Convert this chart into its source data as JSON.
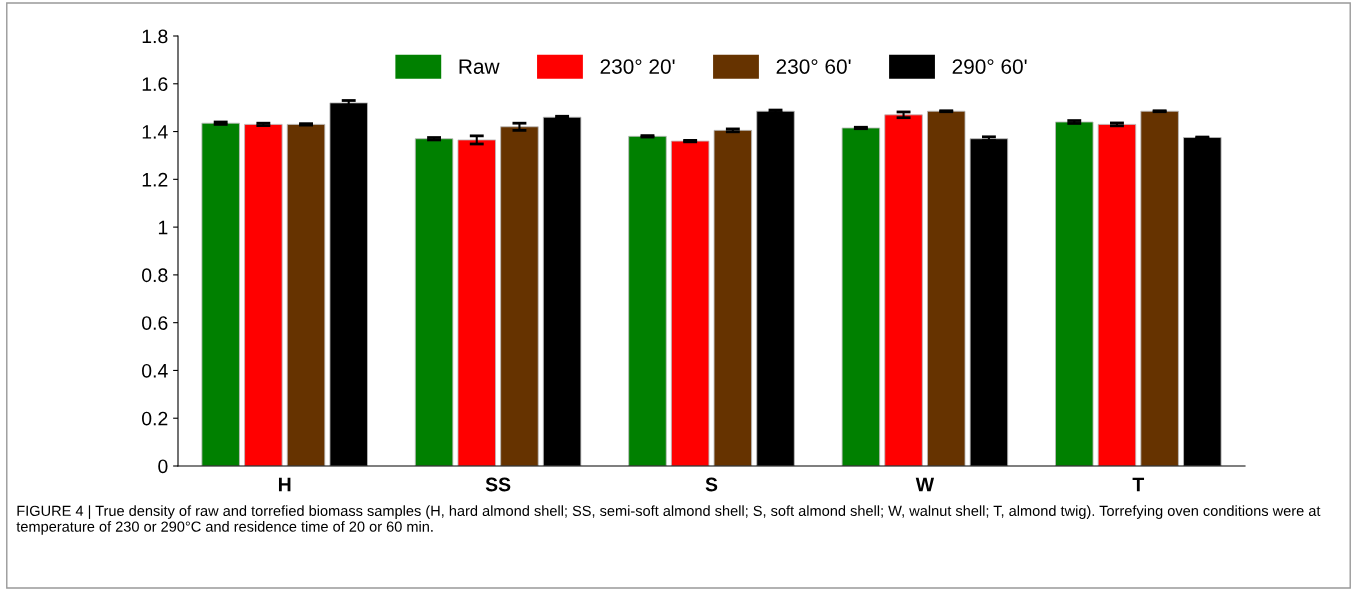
{
  "chart_data": {
    "type": "bar",
    "categories": [
      "H",
      "SS",
      "S",
      "W",
      "T"
    ],
    "series": [
      {
        "name": "Raw",
        "color": "#008000",
        "values": [
          1.435,
          1.37,
          1.38,
          1.415,
          1.44
        ],
        "errors": [
          0.005,
          0.005,
          0.003,
          0.003,
          0.006
        ]
      },
      {
        "name": "230° 20'",
        "color": "#ff0000",
        "values": [
          1.43,
          1.365,
          1.36,
          1.47,
          1.43
        ],
        "errors": [
          0.005,
          0.017,
          0.003,
          0.012,
          0.006
        ]
      },
      {
        "name": "230° 60'",
        "color": "#663300",
        "values": [
          1.43,
          1.42,
          1.405,
          1.485,
          1.485
        ],
        "errors": [
          0.003,
          0.015,
          0.006,
          0.002,
          0.002
        ]
      },
      {
        "name": "290° 60'",
        "color": "#000000",
        "values": [
          1.52,
          1.46,
          1.485,
          1.37,
          1.375
        ],
        "errors": [
          0.01,
          0.004,
          0.005,
          0.008,
          0.002
        ]
      }
    ],
    "ylim": [
      0,
      1.8
    ],
    "yticks": [
      0,
      0.2,
      0.4,
      0.6,
      0.8,
      1,
      1.2,
      1.4,
      1.6,
      1.8
    ],
    "legend": "top",
    "grid": false,
    "annotations": [
      "FIGURE 4 | True density of raw and torrefied biomass samples (H, hard almond shell; SS, semi-soft almond shell; S, soft almond shell; W, walnut shell; T, almond twig). Torrefying oven conditions were at temperature of 230 or 290°C and residence time of 20 or 60 min."
    ]
  }
}
